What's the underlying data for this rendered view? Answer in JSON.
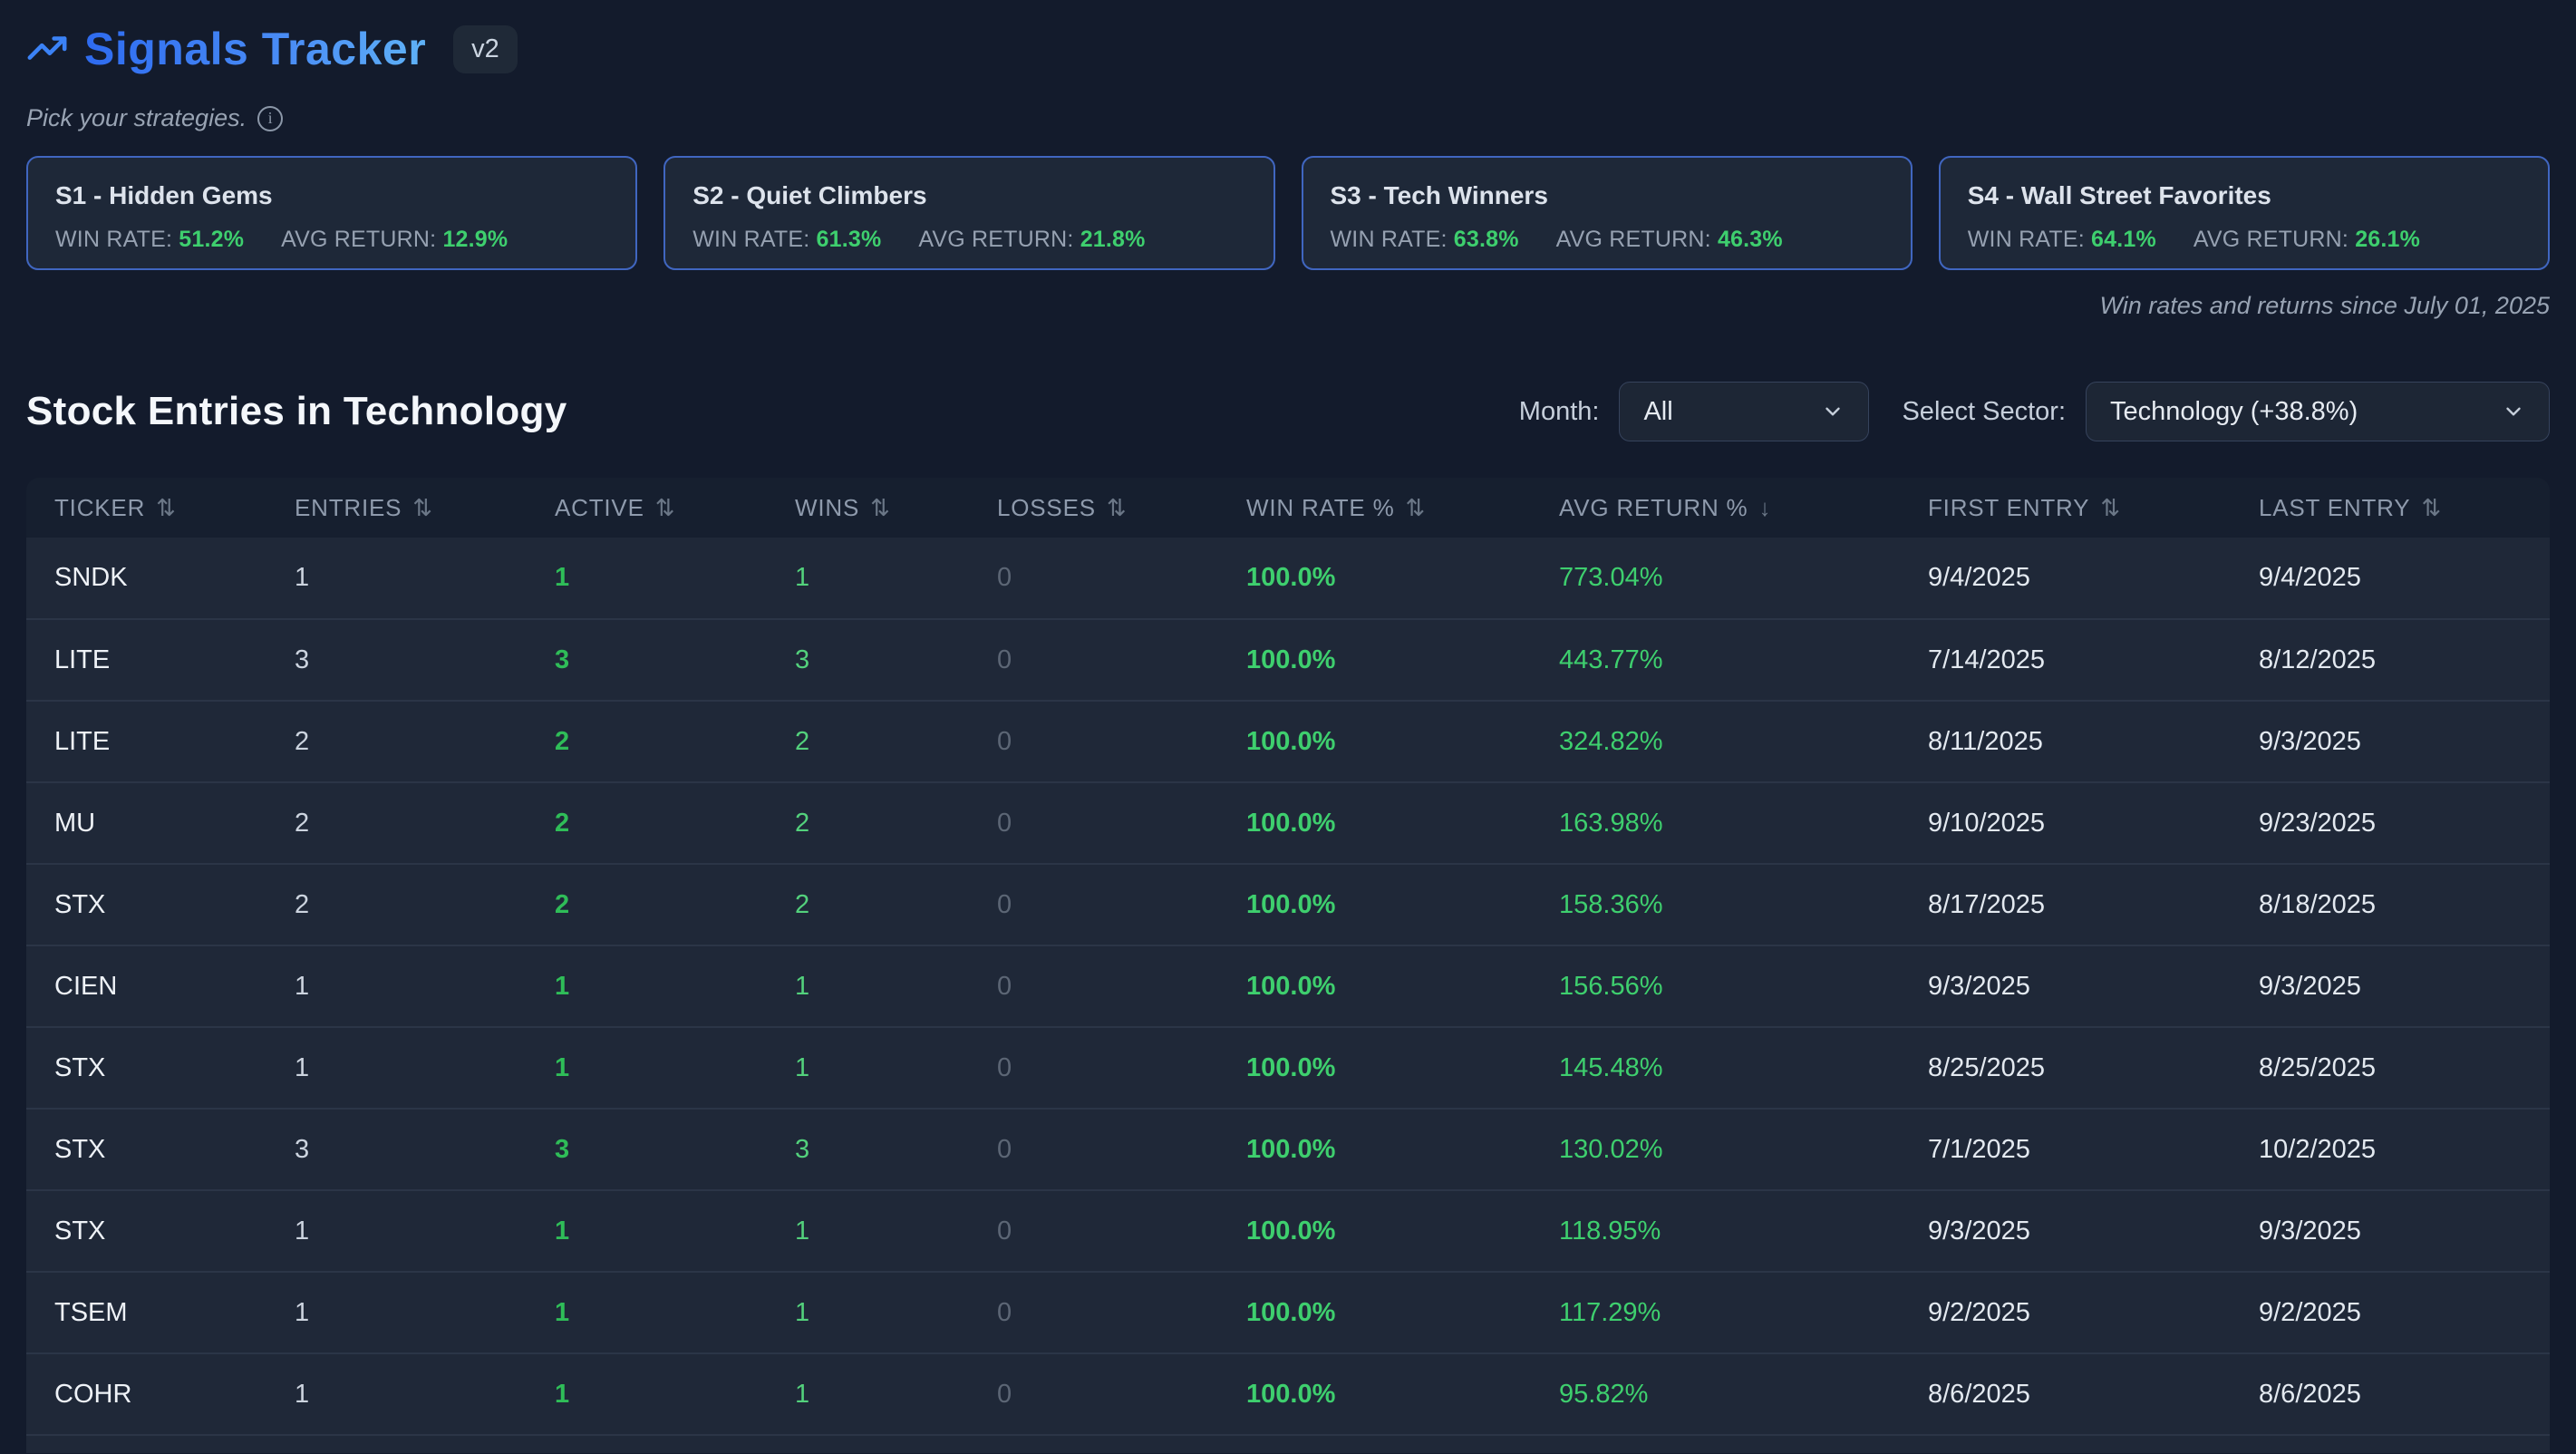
{
  "app": {
    "title": "Signals Tracker",
    "version_badge": "v2",
    "subtitle": "Pick your strategies.",
    "footnote": "Win rates and returns since July 01, 2025"
  },
  "labels": {
    "win_rate": "WIN RATE:",
    "avg_return": "AVG RETURN:"
  },
  "strategies": [
    {
      "id": "s1",
      "name": "S1 - Hidden Gems",
      "win_rate": "51.2%",
      "avg_return": "12.9%"
    },
    {
      "id": "s2",
      "name": "S2 - Quiet Climbers",
      "win_rate": "61.3%",
      "avg_return": "21.8%"
    },
    {
      "id": "s3",
      "name": "S3 - Tech Winners",
      "win_rate": "63.8%",
      "avg_return": "46.3%"
    },
    {
      "id": "s4",
      "name": "S4 - Wall Street Favorites",
      "win_rate": "64.1%",
      "avg_return": "26.1%"
    }
  ],
  "section": {
    "title": "Stock Entries in Technology",
    "month_label": "Month:",
    "month_value": "All",
    "sector_label": "Select Sector:",
    "sector_value": "Technology (+38.8%)"
  },
  "table": {
    "columns": [
      {
        "label": "TICKER",
        "sort": "inactive"
      },
      {
        "label": "ENTRIES",
        "sort": "inactive"
      },
      {
        "label": "ACTIVE",
        "sort": "inactive"
      },
      {
        "label": "WINS",
        "sort": "inactive"
      },
      {
        "label": "LOSSES",
        "sort": "inactive"
      },
      {
        "label": "WIN RATE %",
        "sort": "inactive"
      },
      {
        "label": "AVG RETURN %",
        "sort": "desc"
      },
      {
        "label": "FIRST ENTRY",
        "sort": "inactive"
      },
      {
        "label": "LAST ENTRY",
        "sort": "inactive"
      }
    ],
    "rows": [
      [
        "SNDK",
        "1",
        "1",
        "1",
        "0",
        "100.0%",
        "773.04%",
        "9/4/2025",
        "9/4/2025"
      ],
      [
        "LITE",
        "3",
        "3",
        "3",
        "0",
        "100.0%",
        "443.77%",
        "7/14/2025",
        "8/12/2025"
      ],
      [
        "LITE",
        "2",
        "2",
        "2",
        "0",
        "100.0%",
        "324.82%",
        "8/11/2025",
        "9/3/2025"
      ],
      [
        "MU",
        "2",
        "2",
        "2",
        "0",
        "100.0%",
        "163.98%",
        "9/10/2025",
        "9/23/2025"
      ],
      [
        "STX",
        "2",
        "2",
        "2",
        "0",
        "100.0%",
        "158.36%",
        "8/17/2025",
        "8/18/2025"
      ],
      [
        "CIEN",
        "1",
        "1",
        "1",
        "0",
        "100.0%",
        "156.56%",
        "9/3/2025",
        "9/3/2025"
      ],
      [
        "STX",
        "1",
        "1",
        "1",
        "0",
        "100.0%",
        "145.48%",
        "8/25/2025",
        "8/25/2025"
      ],
      [
        "STX",
        "3",
        "3",
        "3",
        "0",
        "100.0%",
        "130.02%",
        "7/1/2025",
        "10/2/2025"
      ],
      [
        "STX",
        "1",
        "1",
        "1",
        "0",
        "100.0%",
        "118.95%",
        "9/3/2025",
        "9/3/2025"
      ],
      [
        "TSEM",
        "1",
        "1",
        "1",
        "0",
        "100.0%",
        "117.29%",
        "9/2/2025",
        "9/2/2025"
      ],
      [
        "COHR",
        "1",
        "1",
        "1",
        "0",
        "100.0%",
        "95.82%",
        "8/6/2025",
        "8/6/2025"
      ]
    ]
  },
  "colors": {
    "accent_blue": "#3b82f6",
    "positive_green": "#3ecf6e",
    "page_bg": "#131b2c",
    "row_bg": "#1f2838"
  }
}
